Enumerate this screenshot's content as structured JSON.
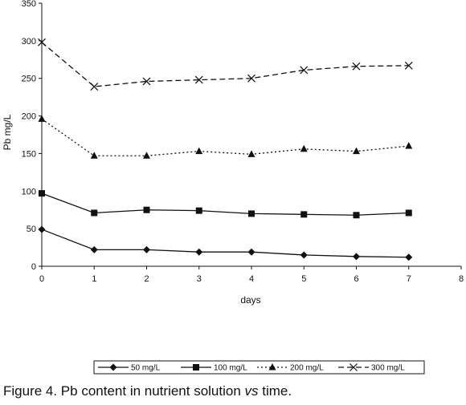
{
  "chart_data": {
    "type": "line",
    "title": "",
    "xlabel": "days",
    "ylabel": "Pb mg/L",
    "xlim": [
      0,
      8
    ],
    "ylim": [
      0,
      350
    ],
    "xticks": [
      0,
      1,
      2,
      3,
      4,
      5,
      6,
      7,
      8
    ],
    "yticks": [
      0,
      50,
      100,
      150,
      200,
      250,
      300,
      350
    ],
    "grid": false,
    "legend_position": "bottom",
    "series": [
      {
        "name": "50 mg/L",
        "marker": "diamond",
        "dash": "solid",
        "x": [
          0,
          1,
          2,
          3,
          4,
          5,
          6,
          7
        ],
        "values": [
          49,
          22,
          22,
          19,
          19,
          15,
          13,
          12
        ]
      },
      {
        "name": "100 mg/L",
        "marker": "square",
        "dash": "solid",
        "x": [
          0,
          1,
          2,
          3,
          4,
          5,
          6,
          7
        ],
        "values": [
          97,
          71,
          75,
          74,
          70,
          69,
          68,
          71
        ]
      },
      {
        "name": "200 mg/L",
        "marker": "triangle",
        "dash": "dotted",
        "x": [
          0,
          1,
          2,
          3,
          4,
          5,
          6,
          7
        ],
        "values": [
          196,
          147,
          147,
          153,
          149,
          156,
          153,
          160
        ]
      },
      {
        "name": "300 mg/L",
        "marker": "cross",
        "dash": "dashed",
        "x": [
          0,
          1,
          2,
          3,
          4,
          5,
          6,
          7
        ],
        "values": [
          298,
          239,
          246,
          248,
          250,
          261,
          266,
          267
        ]
      }
    ]
  },
  "caption": {
    "prefix": "Figure 4. Pb content in nutrient solution ",
    "emphasis": "vs",
    "suffix": " time."
  }
}
